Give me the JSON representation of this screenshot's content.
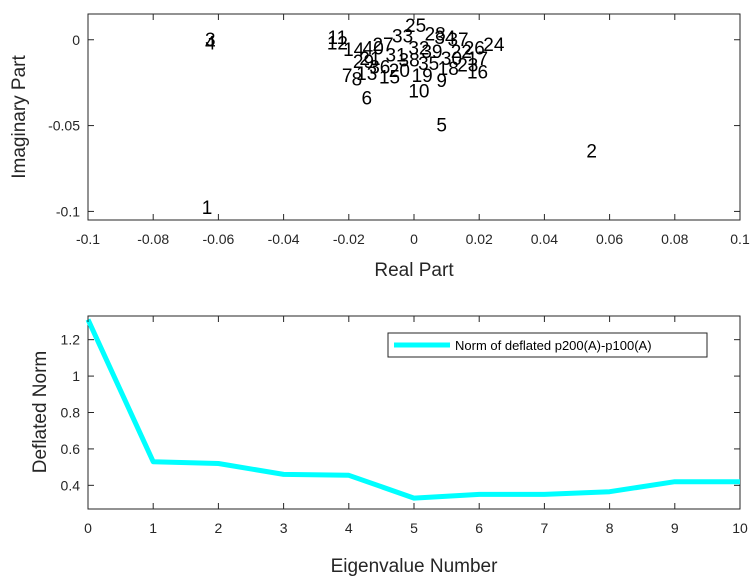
{
  "chart_data": [
    {
      "type": "scatter",
      "xlabel": "Real Part",
      "ylabel": "Imaginary Part",
      "xlim": [
        -0.1,
        0.1
      ],
      "ylim": [
        -0.105,
        0.015
      ],
      "xticks": [
        -0.1,
        -0.08,
        -0.06,
        -0.04,
        -0.02,
        0,
        0.02,
        0.04,
        0.06,
        0.08,
        0.1
      ],
      "xtick_labels": [
        "-0.1",
        "-0.08",
        "-0.06",
        "-0.04",
        "-0.02",
        "0",
        "0.02",
        "0.04",
        "0.06",
        "0.08",
        "0.1"
      ],
      "yticks": [
        0,
        -0.05,
        -0.1
      ],
      "ytick_labels": [
        "0",
        "-0.05",
        "-0.1"
      ],
      "grid": false,
      "markers": "text",
      "points": [
        {
          "label": "1",
          "x": -0.0635,
          "y": -0.0975
        },
        {
          "label": "2",
          "x": 0.0545,
          "y": -0.0645
        },
        {
          "label": "3",
          "x": -0.0625,
          "y": 0.0005
        },
        {
          "label": "4",
          "x": -0.0625,
          "y": -0.0015
        },
        {
          "label": "5",
          "x": 0.0085,
          "y": -0.0495
        },
        {
          "label": "6",
          "x": -0.0145,
          "y": -0.0335
        },
        {
          "label": "7",
          "x": -0.0205,
          "y": -0.0205
        },
        {
          "label": "8",
          "x": -0.0175,
          "y": -0.0225
        },
        {
          "label": "9",
          "x": 0.0085,
          "y": -0.0235
        },
        {
          "label": "10",
          "x": 0.0015,
          "y": -0.0295
        },
        {
          "label": "11",
          "x": -0.0235,
          "y": 0.0015
        },
        {
          "label": "12",
          "x": -0.0235,
          "y": -0.0015
        },
        {
          "label": "13",
          "x": -0.0145,
          "y": -0.0195
        },
        {
          "label": "14",
          "x": -0.0185,
          "y": -0.0055
        },
        {
          "label": "15",
          "x": -0.0075,
          "y": -0.0215
        },
        {
          "label": "16",
          "x": 0.0195,
          "y": -0.0185
        },
        {
          "label": "17",
          "x": 0.0195,
          "y": -0.0105
        },
        {
          "label": "18",
          "x": 0.0105,
          "y": -0.0165
        },
        {
          "label": "19",
          "x": 0.0025,
          "y": -0.0205
        },
        {
          "label": "20",
          "x": -0.0045,
          "y": -0.0175
        },
        {
          "label": "21",
          "x": -0.0135,
          "y": -0.0105
        },
        {
          "label": "22",
          "x": 0.0145,
          "y": -0.0065
        },
        {
          "label": "23",
          "x": 0.0165,
          "y": -0.0145
        },
        {
          "label": "24",
          "x": 0.0245,
          "y": -0.0025
        },
        {
          "label": "25",
          "x": 0.0005,
          "y": 0.0085
        },
        {
          "label": "26",
          "x": 0.0185,
          "y": -0.0045
        },
        {
          "label": "27",
          "x": -0.0095,
          "y": -0.0025
        },
        {
          "label": "28",
          "x": 0.0065,
          "y": 0.0035
        },
        {
          "label": "29",
          "x": -0.0155,
          "y": -0.0125
        },
        {
          "label": "30",
          "x": 0.0115,
          "y": -0.0105
        },
        {
          "label": "31",
          "x": -0.0055,
          "y": -0.0085
        },
        {
          "label": "32",
          "x": 0.0015,
          "y": -0.0045
        },
        {
          "label": "33",
          "x": -0.0035,
          "y": 0.0025
        },
        {
          "label": "34",
          "x": 0.0095,
          "y": 0.0015
        },
        {
          "label": "35",
          "x": 0.0045,
          "y": -0.0135
        },
        {
          "label": "36",
          "x": -0.0105,
          "y": -0.0155
        },
        {
          "label": "37",
          "x": 0.0135,
          "y": 0.0005
        },
        {
          "label": "38",
          "x": -0.0015,
          "y": -0.0115
        },
        {
          "label": "39",
          "x": 0.0055,
          "y": -0.0065
        },
        {
          "label": "40",
          "x": -0.0125,
          "y": -0.0045
        }
      ]
    },
    {
      "type": "line",
      "xlabel": "Eigenvalue Number",
      "ylabel": "Deflated Norm",
      "xlim": [
        0,
        10
      ],
      "ylim": [
        0.27,
        1.33
      ],
      "xticks": [
        0,
        1,
        2,
        3,
        4,
        5,
        6,
        7,
        8,
        9,
        10
      ],
      "xtick_labels": [
        "0",
        "1",
        "2",
        "3",
        "4",
        "5",
        "6",
        "7",
        "8",
        "9",
        "10"
      ],
      "yticks": [
        0.4,
        0.6,
        0.8,
        1,
        1.2
      ],
      "ytick_labels": [
        "0.4",
        "0.6",
        "0.8",
        "1",
        "1.2"
      ],
      "grid": false,
      "legend": "top-right",
      "series": [
        {
          "name": "Norm of deflated p200(A)-p100(A)",
          "color": "#00FFFF",
          "x": [
            0,
            1,
            2,
            3,
            4,
            5,
            6,
            7,
            8,
            9,
            10
          ],
          "values": [
            1.31,
            0.53,
            0.52,
            0.46,
            0.455,
            0.33,
            0.35,
            0.35,
            0.365,
            0.42,
            0.42
          ]
        }
      ]
    }
  ]
}
